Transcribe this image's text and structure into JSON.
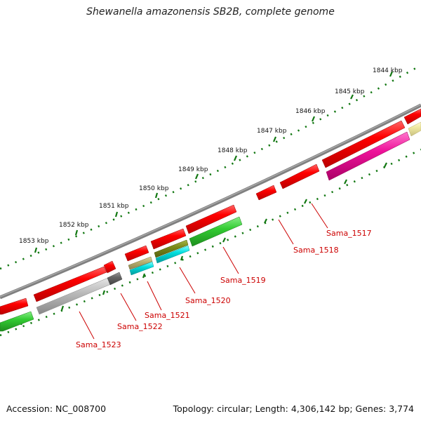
{
  "title": "Shewanella amazonensis SB2B, complete genome",
  "footer": {
    "accession": "Accession: NC_008700",
    "summary": "Topology: circular; Length: 4,306,142 bp; Genes: 3,774"
  },
  "scale_ticks": [
    "1844 kbp",
    "1845 kbp",
    "1846 kbp",
    "1847 kbp",
    "1848 kbp",
    "1849 kbp",
    "1850 kbp",
    "1851 kbp",
    "1852 kbp",
    "1853 kbp"
  ],
  "gene_labels": [
    "Sama_1517",
    "Sama_1518",
    "Sama_1519",
    "Sama_1520",
    "Sama_1521",
    "Sama_1522",
    "Sama_1523"
  ],
  "colors": {
    "backbone": "#808080",
    "cds_forward": "#ee0000",
    "cog_green": "#33cc33",
    "cog_magenta": "#ee1199",
    "cog_gray": "#bbbbbb",
    "cog_dark": "#666666",
    "cog_khaki": "#b8b070",
    "cog_olive": "#7a8a1a",
    "cog_cyan": "#00dddd",
    "cog_yellow": "#eee8a0",
    "tick_green": "#117711",
    "label_red": "#cc0000"
  }
}
